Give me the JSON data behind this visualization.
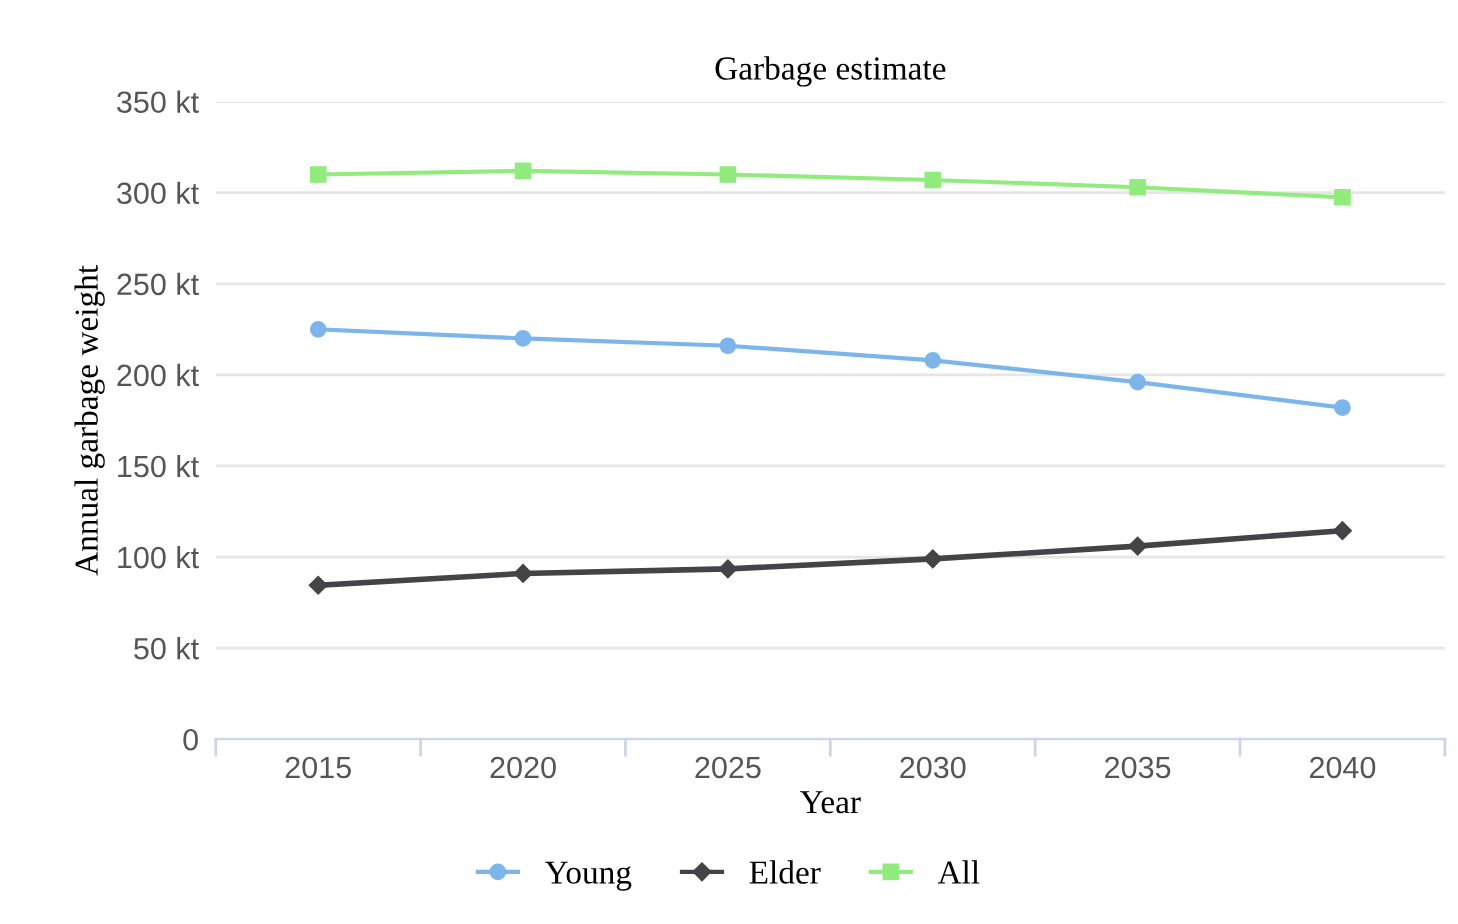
{
  "chart_data": {
    "type": "line",
    "title": "Garbage estimate",
    "xlabel": "Year",
    "ylabel": "Annual garbage weight",
    "categories": [
      "2015",
      "2020",
      "2025",
      "2030",
      "2035",
      "2040"
    ],
    "series": [
      {
        "name": "Young",
        "color": "#7cb5ec",
        "marker": "circle",
        "values": [
          225,
          220,
          216,
          208,
          196,
          182
        ]
      },
      {
        "name": "Elder",
        "color": "#434348",
        "marker": "diamond",
        "values": [
          84.5,
          91,
          93.5,
          99,
          106,
          114.5
        ]
      },
      {
        "name": "All",
        "color": "#90ed7d",
        "marker": "square",
        "values": [
          310,
          312,
          310,
          307,
          303,
          297.5
        ]
      }
    ],
    "ylim": [
      0,
      350
    ],
    "yticks": [
      {
        "value": 0,
        "label": "0"
      },
      {
        "value": 50,
        "label": "50 kt"
      },
      {
        "value": 100,
        "label": "100 kt"
      },
      {
        "value": 150,
        "label": "150 kt"
      },
      {
        "value": 200,
        "label": "200 kt"
      },
      {
        "value": 250,
        "label": "250 kt"
      },
      {
        "value": 300,
        "label": "300 kt"
      },
      {
        "value": 350,
        "label": "350 kt"
      }
    ],
    "grid": "y",
    "legend": "bottom"
  }
}
